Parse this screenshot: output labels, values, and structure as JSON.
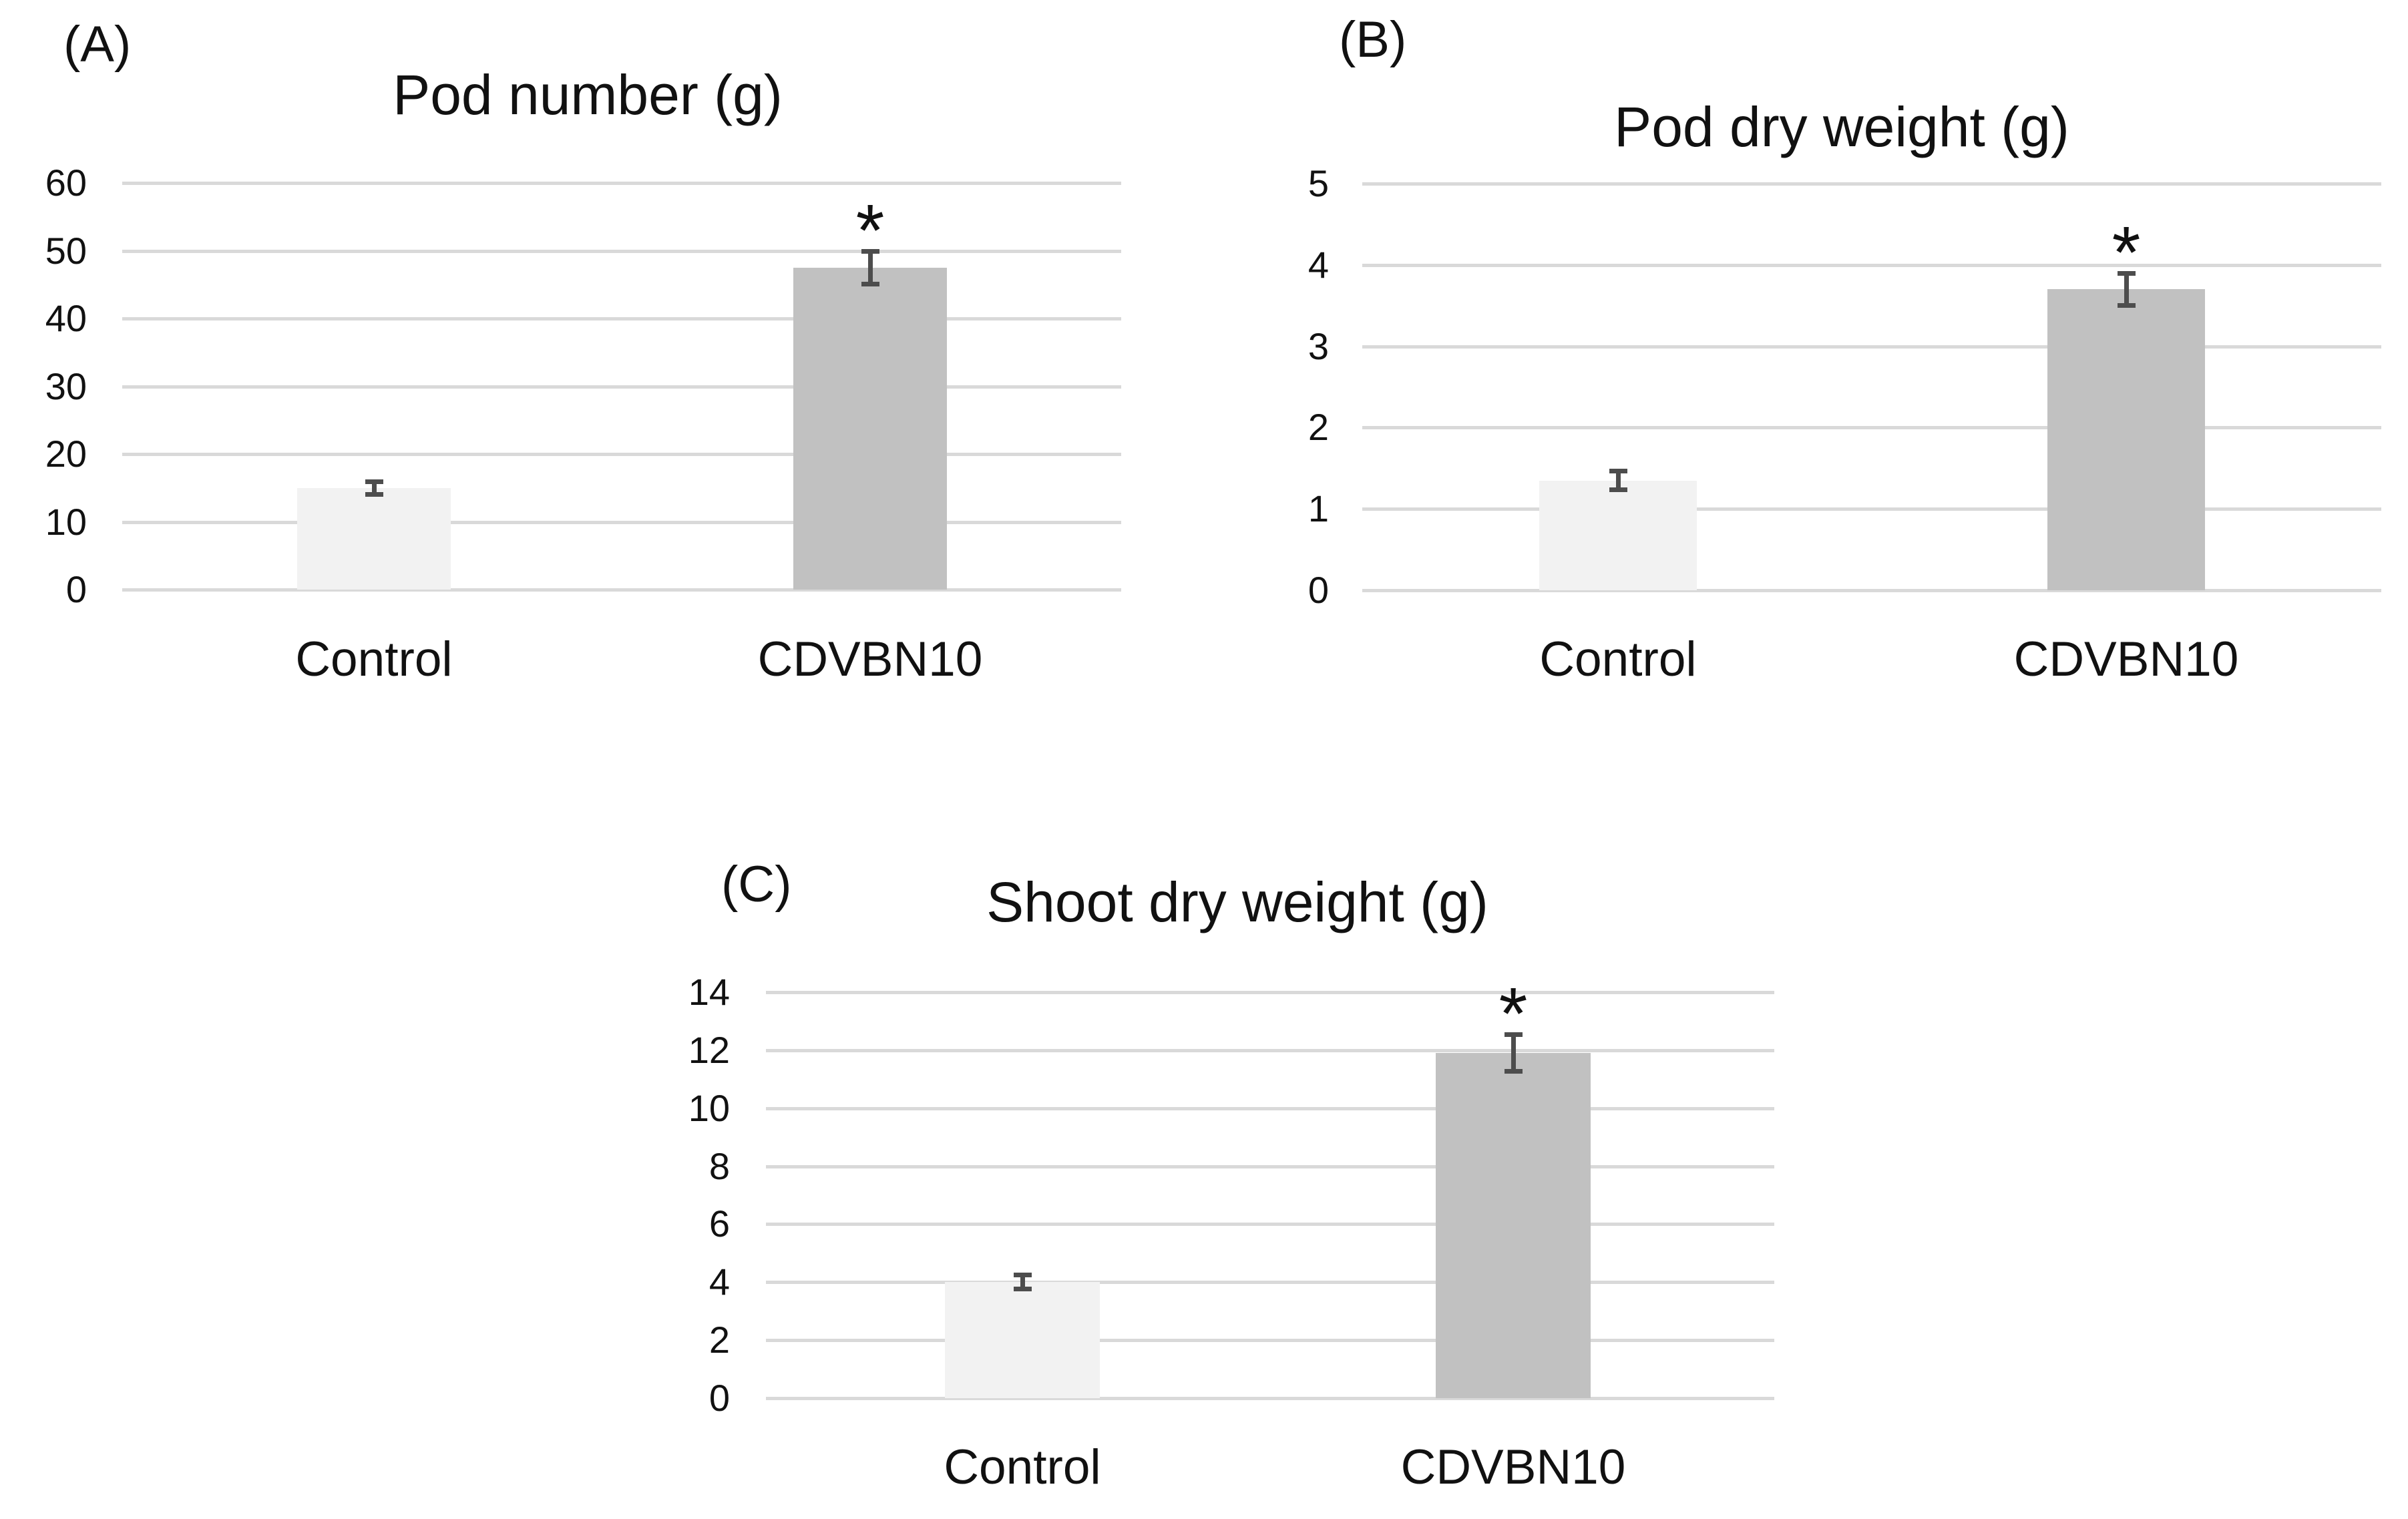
{
  "figure": {
    "background": "#ffffff",
    "text_color": "#111111",
    "gridline_color": "#d9d9d9",
    "error_bar_color": "#4d4d4d",
    "control_bar_color": "#f2f2f2",
    "treatment_bar_color": "#c1c1c1"
  },
  "chart_data": [
    {
      "id": "A",
      "panel_label": "(A)",
      "type": "bar",
      "title": "Pod number (g)",
      "categories": [
        "Control",
        "CDVBN10"
      ],
      "values": [
        15,
        47.5
      ],
      "errors": [
        1,
        2.5
      ],
      "significance": [
        "",
        "*"
      ],
      "ylim": [
        0,
        60
      ],
      "yticks": [
        0,
        10,
        20,
        30,
        40,
        50,
        60
      ],
      "bar_colors": [
        "#f2f2f2",
        "#c1c1c1"
      ],
      "grid": true,
      "legend": "none"
    },
    {
      "id": "B",
      "panel_label": "(B)",
      "type": "bar",
      "title": "Pod dry weight (g)",
      "categories": [
        "Control",
        "CDVBN10"
      ],
      "values": [
        1.35,
        3.7
      ],
      "errors": [
        0.12,
        0.2
      ],
      "significance": [
        "",
        "*"
      ],
      "ylim": [
        0,
        5
      ],
      "yticks": [
        0,
        1,
        2,
        3,
        4,
        5
      ],
      "bar_colors": [
        "#f2f2f2",
        "#c1c1c1"
      ],
      "grid": true,
      "legend": "none"
    },
    {
      "id": "C",
      "panel_label": "(C)",
      "type": "bar",
      "title": "Shoot dry weight (g)",
      "categories": [
        "Control",
        "CDVBN10"
      ],
      "values": [
        4,
        11.9
      ],
      "errors": [
        0.25,
        0.65
      ],
      "significance": [
        "",
        "*"
      ],
      "ylim": [
        0,
        14
      ],
      "yticks": [
        0,
        2,
        4,
        6,
        8,
        10,
        12,
        14
      ],
      "bar_colors": [
        "#f2f2f2",
        "#c1c1c1"
      ],
      "grid": true,
      "legend": "none"
    }
  ]
}
